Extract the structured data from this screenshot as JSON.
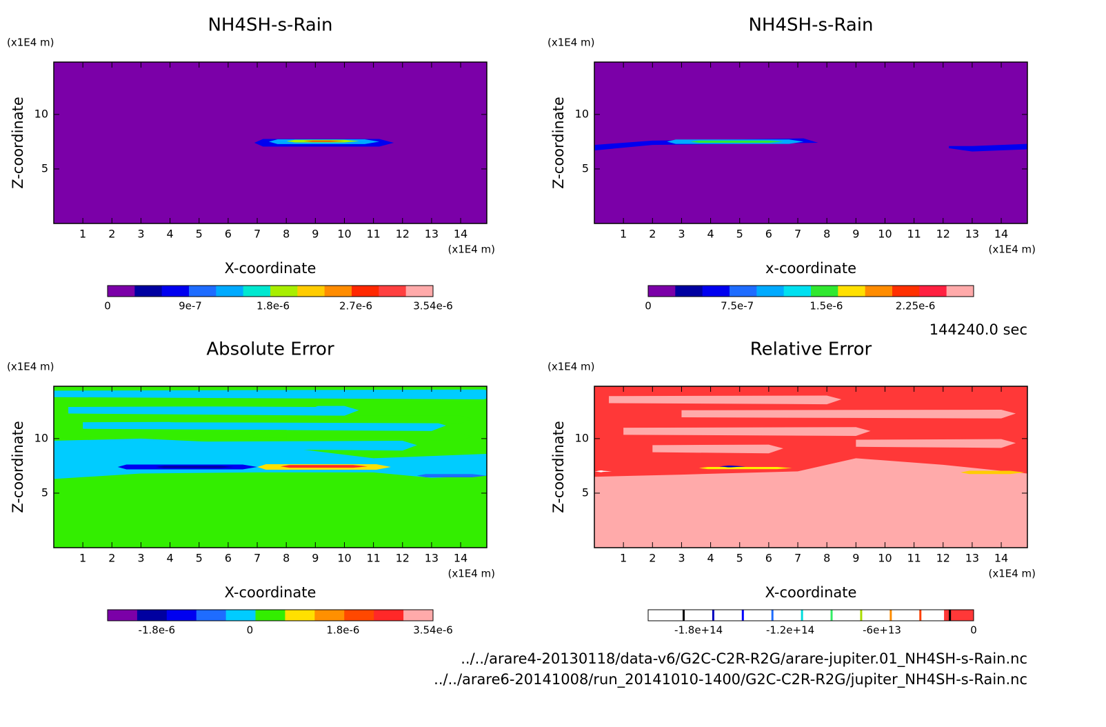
{
  "chart_data": [
    {
      "type": "contour",
      "title": "NH4SH-s-Rain",
      "xlabel": "X-coordinate",
      "ylabel": "Z-coordinate",
      "xunit": "(x1E4 m)",
      "yunit": "(x1E4 m)",
      "xlim": [
        0,
        14.9
      ],
      "ylim": [
        0,
        14.8
      ],
      "xticks": [
        1,
        2,
        3,
        4,
        5,
        6,
        7,
        8,
        9,
        10,
        11,
        12,
        13,
        14
      ],
      "yticks": [
        5,
        10
      ],
      "colorbar": {
        "colors": [
          "#7b00a8",
          "#0000a0",
          "#0000f0",
          "#1e6cff",
          "#00aaff",
          "#00e8d0",
          "#a8ee00",
          "#ffcc00",
          "#ff8c00",
          "#ff2800",
          "#ff4040",
          "#ffaaaa"
        ],
        "clim": [
          0,
          3.54e-06
        ],
        "ticks": [
          0,
          {
            "value": 9e-07,
            "label": "9e-7"
          },
          {
            "value": 1.8e-06,
            "label": "1.8e-6"
          },
          {
            "value": 2.7e-06,
            "label": "2.7e-6"
          },
          {
            "value": 3.54e-06,
            "label": "3.54e-6"
          }
        ]
      }
    },
    {
      "type": "contour",
      "title": "NH4SH-s-Rain",
      "xlabel": "x-coordinate",
      "ylabel": "Z-coordinate",
      "xunit": "(x1E4 m)",
      "yunit": "(x1E4 m)",
      "xlim": [
        0,
        14.9
      ],
      "ylim": [
        0,
        14.8
      ],
      "xticks": [
        1,
        2,
        3,
        4,
        5,
        6,
        7,
        8,
        9,
        10,
        11,
        12,
        13,
        14
      ],
      "yticks": [
        5,
        10
      ],
      "colorbar": {
        "colors": [
          "#7b00a8",
          "#0000a0",
          "#0000f0",
          "#1e6cff",
          "#00aaff",
          "#00e0f0",
          "#30e830",
          "#ffe000",
          "#ff8c00",
          "#ff3000",
          "#ff2040",
          "#ffaaaa"
        ],
        "clim": [
          0,
          2.74e-06
        ],
        "ticks": [
          0,
          {
            "value": 7.5e-07,
            "label": "7.5e-7"
          },
          {
            "value": 1.5e-06,
            "label": "1.5e-6"
          },
          {
            "value": 2.25e-06,
            "label": "2.25e-6"
          }
        ]
      }
    },
    {
      "type": "contour",
      "title": "Absolute Error",
      "xlabel": "X-coordinate",
      "ylabel": "Z-coordinate",
      "xunit": "(x1E4 m)",
      "yunit": "(x1E4 m)",
      "xlim": [
        0,
        14.9
      ],
      "ylim": [
        0,
        14.8
      ],
      "xticks": [
        1,
        2,
        3,
        4,
        5,
        6,
        7,
        8,
        9,
        10,
        11,
        12,
        13,
        14
      ],
      "yticks": [
        5,
        10
      ],
      "colorbar": {
        "colors": [
          "#7b00a8",
          "#0000a0",
          "#0000f0",
          "#1e6cff",
          "#00ccff",
          "#33ee00",
          "#ffe000",
          "#ff9000",
          "#ff4800",
          "#ff2828",
          "#ffaaaa"
        ],
        "clim": [
          -2.75e-06,
          3.54e-06
        ],
        "ticks": [
          {
            "value": -1.8e-06,
            "label": "-1.8e-6"
          },
          0,
          {
            "value": 1.8e-06,
            "label": "1.8e-6"
          },
          {
            "value": 3.54e-06,
            "label": "3.54e-6"
          }
        ]
      }
    },
    {
      "type": "contour",
      "title": "Relative Error",
      "xlabel": "X-coordinate",
      "ylabel": "Z-coordinate",
      "xunit": "(x1E4 m)",
      "yunit": "(x1E4 m)",
      "xlim": [
        0,
        14.9
      ],
      "ylim": [
        0,
        14.8
      ],
      "xticks": [
        1,
        2,
        3,
        4,
        5,
        6,
        7,
        8,
        9,
        10,
        11,
        12,
        13,
        14
      ],
      "yticks": [
        5,
        10
      ],
      "colorbar": {
        "colors": [
          "#ffffff",
          "#ffffff",
          "#ffffff",
          "#ffffff",
          "#ffffff",
          "#ffffff",
          "#ffffff",
          "#ffffff",
          "#ffffff",
          "#ffffff",
          "#ff3838"
        ],
        "line_colors": [
          "#000000",
          "#0000c0",
          "#0000ff",
          "#1e6cff",
          "#00dddd",
          "#33ee66",
          "#aadd00",
          "#ff8c00",
          "#ff4000",
          "#000000"
        ],
        "clim": [
          -213000000000000.0,
          0
        ],
        "ticks": [
          {
            "value": -180000000000000.0,
            "label": "-1.8e+14"
          },
          {
            "value": -120000000000000.0,
            "label": "-1.2e+14"
          },
          {
            "value": -60000000000000.0,
            "label": "-6e+13"
          },
          0
        ]
      }
    }
  ],
  "time": "144240.0 sec",
  "files": [
    "../../arare4-20130118/data-v6/G2C-C2R-R2G/arare-jupiter.01_NH4SH-s-Rain.nc",
    "../../arare6-20141008/run_20141010-1400/G2C-C2R-R2G/jupiter_NH4SH-s-Rain.nc"
  ]
}
